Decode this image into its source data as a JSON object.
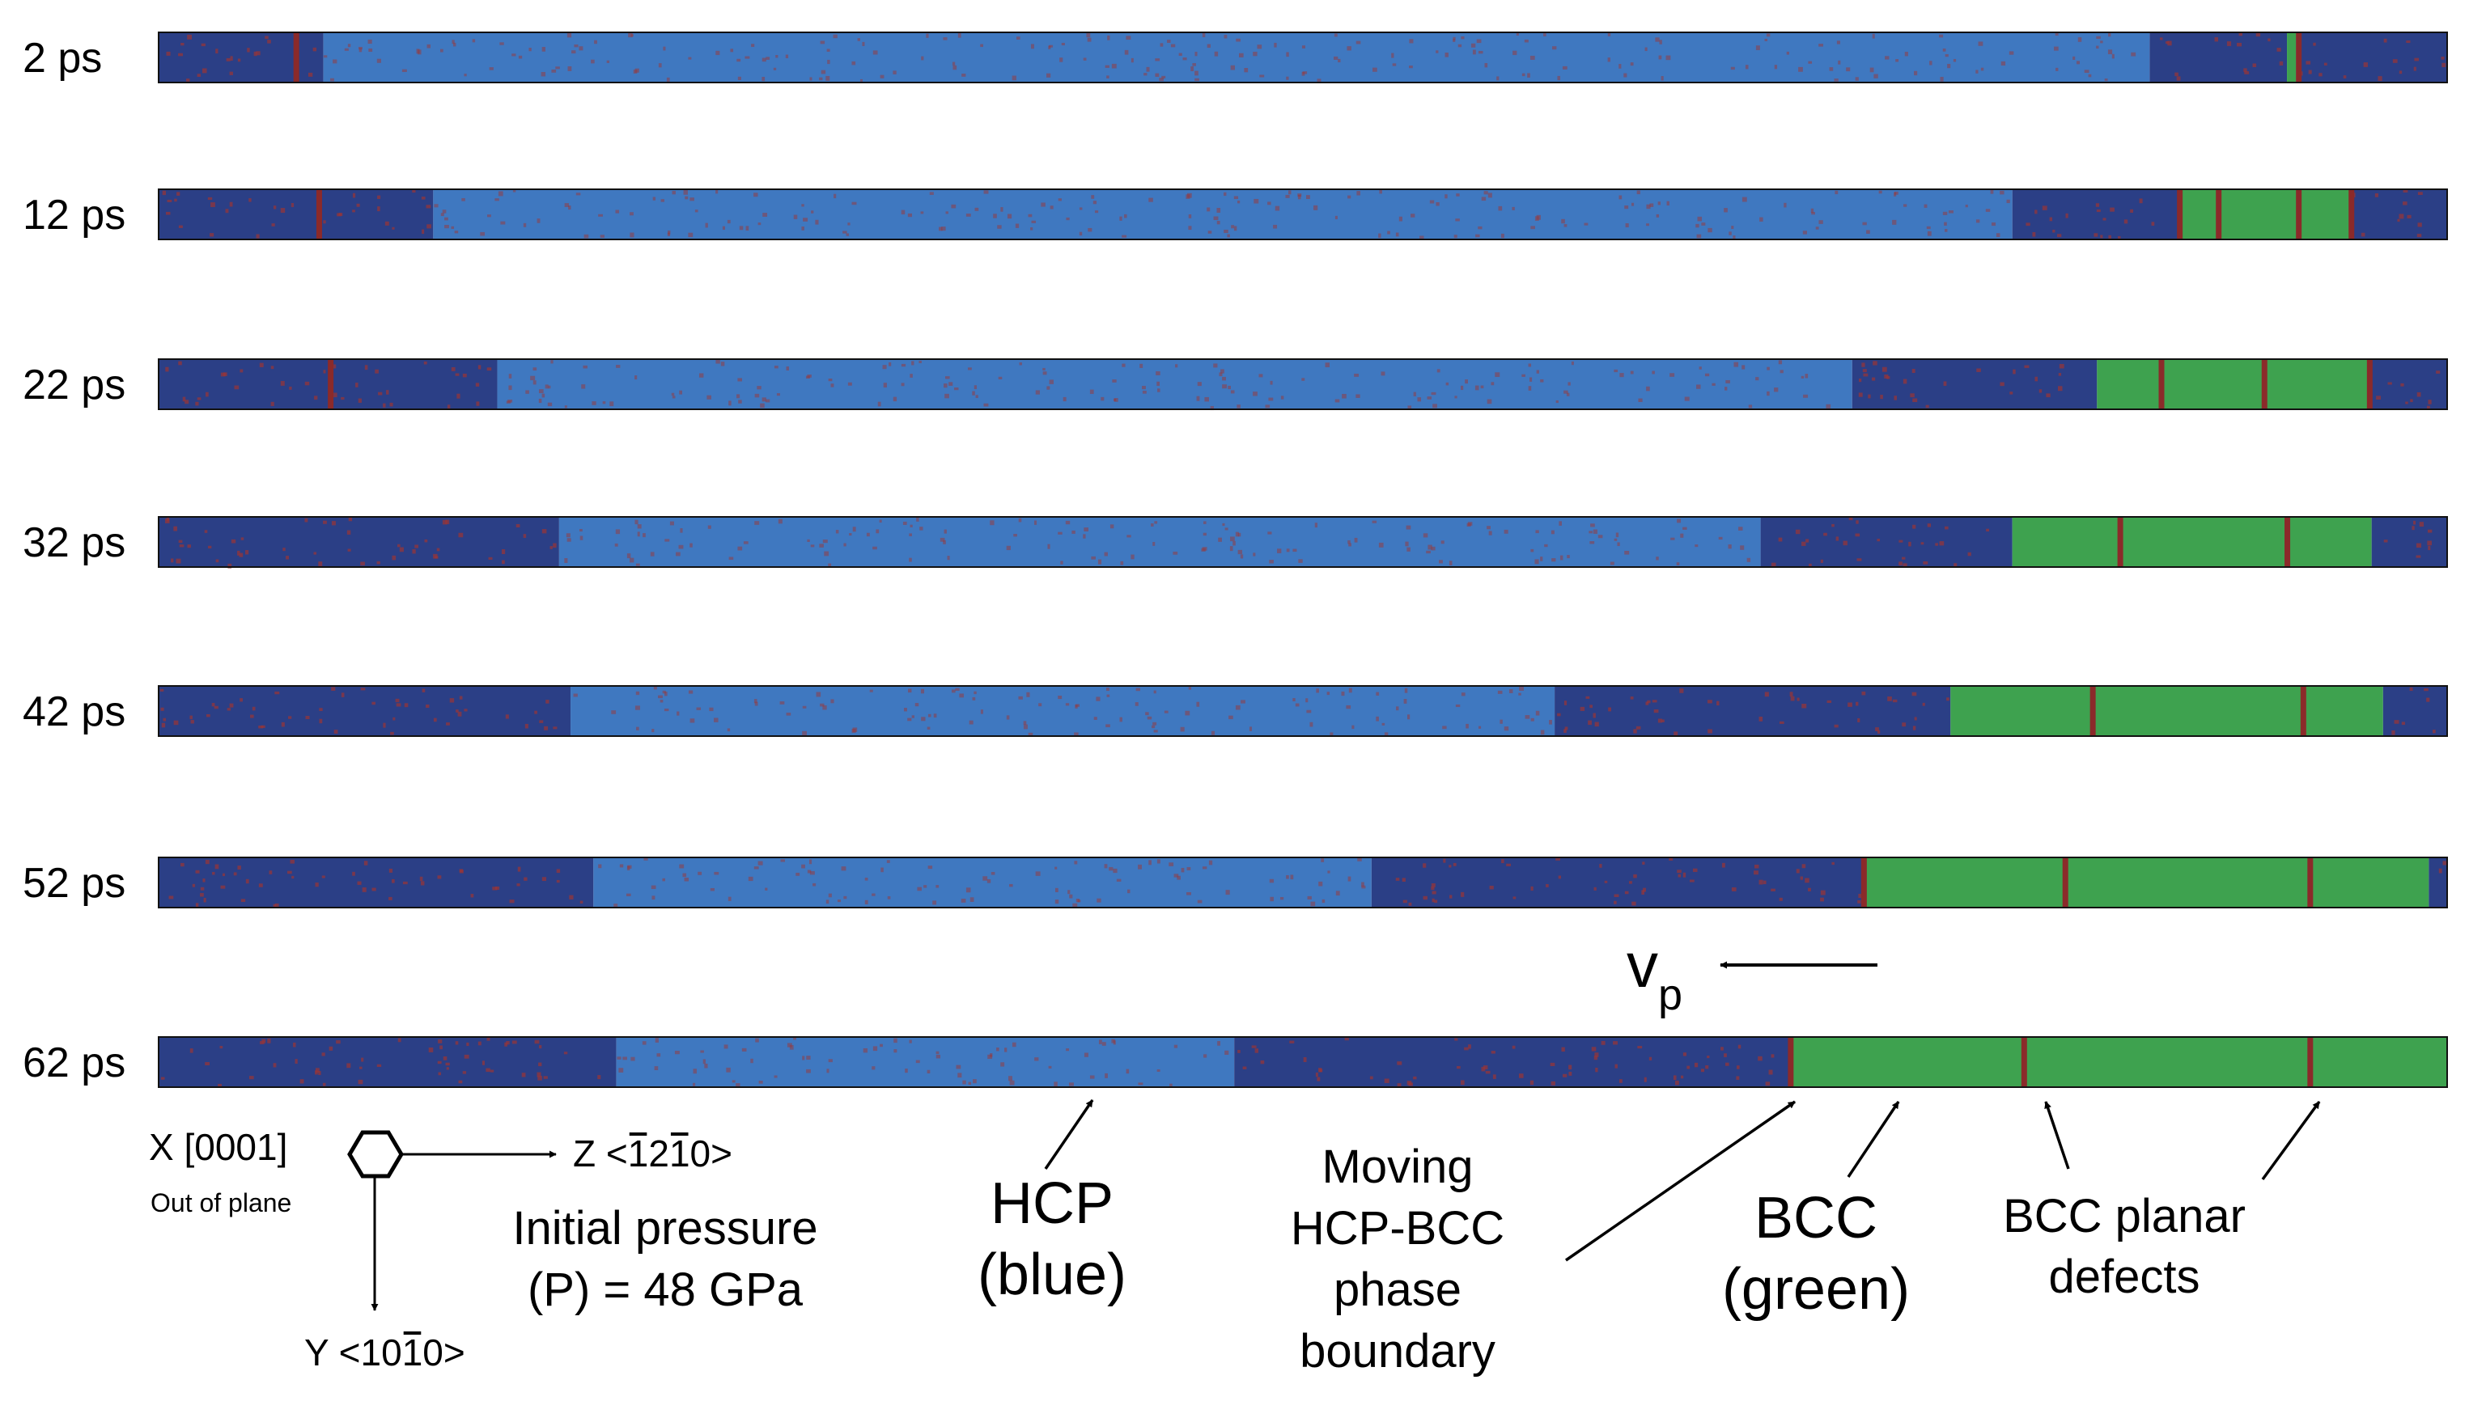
{
  "snapshots": [
    {
      "time_label": "2 ps",
      "regions": [
        [
          "dark",
          0.0,
          0.072
        ],
        [
          "light",
          0.072,
          0.87
        ],
        [
          "dark",
          0.87,
          0.93
        ],
        [
          "green",
          0.93,
          0.934
        ],
        [
          "dark",
          0.934,
          1.0
        ]
      ],
      "defects": [
        0.06,
        0.935
      ]
    },
    {
      "time_label": "12 ps",
      "regions": [
        [
          "dark",
          0.0,
          0.12
        ],
        [
          "light",
          0.12,
          0.81
        ],
        [
          "dark",
          0.81,
          0.883
        ],
        [
          "green",
          0.883,
          0.958
        ],
        [
          "dark",
          0.958,
          1.0
        ]
      ],
      "defects": [
        0.07,
        0.883,
        0.9,
        0.935,
        0.958
      ]
    },
    {
      "time_label": "22 ps",
      "regions": [
        [
          "dark",
          0.0,
          0.148
        ],
        [
          "light",
          0.148,
          0.74
        ],
        [
          "dark",
          0.74,
          0.847
        ],
        [
          "green",
          0.847,
          0.966
        ],
        [
          "dark",
          0.966,
          1.0
        ]
      ],
      "defects": [
        0.075,
        0.875,
        0.92,
        0.966
      ]
    },
    {
      "time_label": "32 ps",
      "regions": [
        [
          "dark",
          0.0,
          0.175
        ],
        [
          "light",
          0.175,
          0.7
        ],
        [
          "dark",
          0.7,
          0.81
        ],
        [
          "green",
          0.81,
          0.967
        ],
        [
          "dark",
          0.967,
          1.0
        ]
      ],
      "defects": [
        0.857,
        0.93
      ]
    },
    {
      "time_label": "42 ps",
      "regions": [
        [
          "dark",
          0.0,
          0.18
        ],
        [
          "light",
          0.18,
          0.61
        ],
        [
          "dark",
          0.61,
          0.783
        ],
        [
          "green",
          0.783,
          0.972
        ],
        [
          "dark",
          0.972,
          1.0
        ]
      ],
      "defects": [
        0.845,
        0.937
      ]
    },
    {
      "time_label": "52 ps",
      "regions": [
        [
          "dark",
          0.0,
          0.19
        ],
        [
          "light",
          0.19,
          0.53
        ],
        [
          "dark",
          0.53,
          0.745
        ],
        [
          "green",
          0.745,
          0.992
        ],
        [
          "dark",
          0.992,
          1.0
        ]
      ],
      "defects": [
        0.745,
        0.833,
        0.94
      ]
    },
    {
      "time_label": "62 ps",
      "regions": [
        [
          "dark",
          0.0,
          0.2
        ],
        [
          "light",
          0.2,
          0.47
        ],
        [
          "dark",
          0.47,
          0.713
        ],
        [
          "green",
          0.713,
          1.0
        ]
      ],
      "defects": [
        0.713,
        0.815,
        0.94
      ]
    }
  ],
  "velocity": {
    "label_main": "v",
    "label_sub": "p"
  },
  "axes": {
    "x_label": "X [0001]",
    "x_note": "Out of plane",
    "z_label": "Z <",
    "z_digits": [
      "1",
      "2",
      "1",
      "0"
    ],
    "z_bars": [
      true,
      false,
      true,
      false
    ],
    "z_close": ">",
    "y_label": "Y <",
    "y_digits": [
      "1",
      "0",
      "1",
      "0"
    ],
    "y_bars": [
      false,
      false,
      true,
      false
    ],
    "y_close": ">"
  },
  "pressure": {
    "line1": "Initial pressure",
    "line2": "(P) = 48 GPa"
  },
  "annotations": {
    "hcp": {
      "line1": "HCP",
      "line2": "(blue)"
    },
    "boundary": {
      "lines": [
        "Moving",
        "HCP-BCC",
        "phase",
        "boundary"
      ]
    },
    "bcc": {
      "line1": "BCC",
      "line2": "(green)"
    },
    "defects": {
      "line1": "BCC planar",
      "line2": "defects"
    }
  },
  "colors": {
    "hcp_dark_blue": "#2b3f86",
    "hcp_light_blue": "#3f78c0",
    "bcc_green": "#3ea24f",
    "defect_red": "#8b2a2a",
    "atom_noise_red": "#9b3535"
  }
}
